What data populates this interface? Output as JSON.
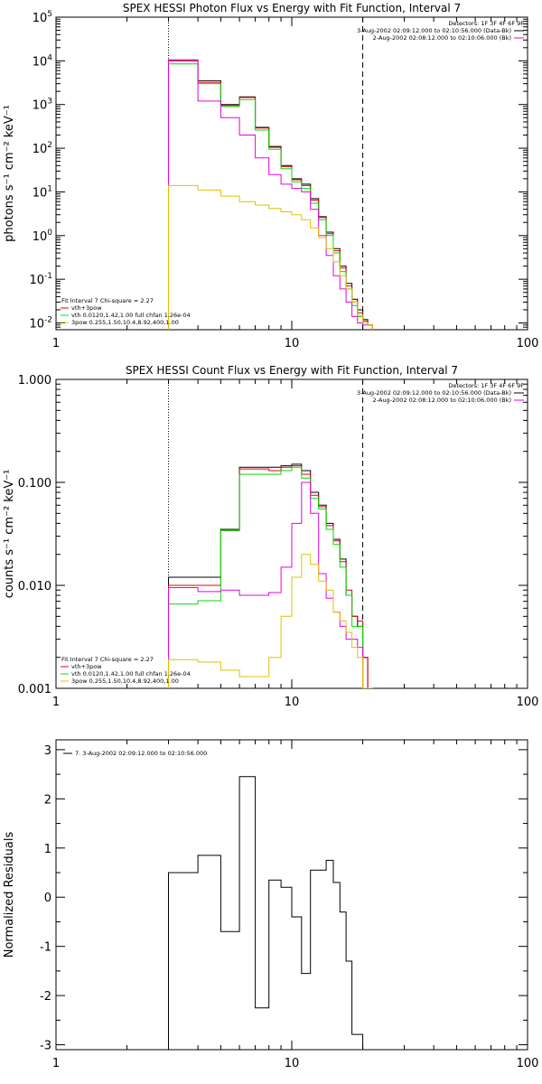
{
  "colors": {
    "black": "#000000",
    "red": "#e0001a",
    "magenta": "#e800e0",
    "green": "#00e000",
    "gold": "#e0c000"
  },
  "chart_data": [
    {
      "type": "line",
      "title": "SPEX HESSI Photon Flux vs Energy with Fit Function, Interval 7",
      "xlabel": "",
      "ylabel": "photons s⁻¹ cm⁻² keV⁻¹",
      "xscale": "log",
      "yscale": "log",
      "xlim": [
        1,
        100
      ],
      "ylim": [
        0.007,
        100000
      ],
      "xticks": [
        "1",
        "10",
        "100"
      ],
      "yticks": [
        {
          "base": "10",
          "exp": "-2",
          "v": 0.01
        },
        {
          "base": "10",
          "exp": "-1",
          "v": 0.1
        },
        {
          "base": "10",
          "exp": "0",
          "v": 1
        },
        {
          "base": "10",
          "exp": "1",
          "v": 10
        },
        {
          "base": "10",
          "exp": "2",
          "v": 100
        },
        {
          "base": "10",
          "exp": "3",
          "v": 1000
        },
        {
          "base": "10",
          "exp": "4",
          "v": 10000
        },
        {
          "base": "10",
          "exp": "5",
          "v": 100000
        }
      ],
      "vlines": [
        {
          "x": 3.0,
          "style": "dotted"
        },
        {
          "x": 20.0,
          "style": "dashed"
        }
      ],
      "legend_top_right": [
        {
          "text": "Detectors: 1F 3F 4F 6F 9F",
          "color": ""
        },
        {
          "text": "3-Aug-2002 02:09:12.000 to 02:10:56.000 (Data-Bk)",
          "color": "black"
        },
        {
          "text": "2-Aug-2002 02:08:12.000 to 02:10:06.000 (Bk)",
          "color": "magenta"
        }
      ],
      "legend_bottom_left": [
        {
          "text": "Fit Interval 7   Chi-square = 2.27",
          "color": ""
        },
        {
          "text": "vth+3pow",
          "color": "red"
        },
        {
          "text": "vth 0.0120,1.42,1.00  full chfan 1.26e-04",
          "color": "green"
        },
        {
          "text": "3pow 0.255,1.50,10.4,8.92,400,1.00",
          "color": "gold"
        }
      ],
      "x_edges": [
        3,
        4,
        5,
        6,
        7,
        8,
        9,
        10,
        11,
        12,
        13,
        14,
        15,
        16,
        17,
        18,
        19,
        20,
        21,
        22
      ],
      "series": [
        {
          "color": "black",
          "values": [
            10000,
            3500,
            1000,
            1500,
            300,
            110,
            40,
            20,
            15,
            7,
            2.7,
            1.2,
            0.5,
            0.2,
            0.08,
            0.035,
            0.02,
            0.012,
            0.009
          ]
        },
        {
          "color": "red",
          "values": [
            10500,
            3200,
            950,
            1450,
            290,
            105,
            38,
            19,
            14,
            6.5,
            2.6,
            1.1,
            0.45,
            0.18,
            0.07,
            0.03,
            0.017,
            0.011,
            0.009
          ]
        },
        {
          "color": "green",
          "values": [
            8500,
            3000,
            900,
            1300,
            260,
            95,
            34,
            17,
            12,
            5.5,
            2.3,
            1.0,
            0.4,
            0.15,
            0.06,
            0.025,
            0.014,
            0.01,
            0.009
          ]
        },
        {
          "color": "magenta",
          "values": [
            10000,
            1200,
            500,
            200,
            60,
            25,
            15,
            12,
            10,
            4,
            1.0,
            0.35,
            0.12,
            0.06,
            0.03,
            0.014,
            0.01,
            0.009,
            0.009
          ]
        },
        {
          "color": "gold",
          "values": [
            14,
            11,
            8,
            6,
            5,
            4.2,
            3.5,
            3.0,
            2.3,
            1.5,
            0.9,
            0.5,
            0.25,
            0.12,
            0.06,
            0.03,
            0.015,
            0.01,
            0.009
          ]
        }
      ]
    },
    {
      "type": "line",
      "title": "SPEX HESSI Count Flux vs Energy with Fit Function, Interval 7",
      "xlabel": "",
      "ylabel": "counts s⁻¹ cm⁻² keV⁻¹",
      "xscale": "log",
      "yscale": "log",
      "xlim": [
        1,
        100
      ],
      "ylim": [
        0.001,
        1.0
      ],
      "xticks": [
        "1",
        "10",
        "100"
      ],
      "yticks": [
        {
          "label": "0.001",
          "v": 0.001
        },
        {
          "label": "0.010",
          "v": 0.01
        },
        {
          "label": "0.100",
          "v": 0.1
        },
        {
          "label": "1.000",
          "v": 1.0
        }
      ],
      "vlines": [
        {
          "x": 3.0,
          "style": "dotted"
        },
        {
          "x": 20.0,
          "style": "dashed"
        }
      ],
      "legend_top_right": [
        {
          "text": "Detectors: 1F 3F 4F 6F 9F",
          "color": ""
        },
        {
          "text": "3-Aug-2002 02:09:12.000 to 02:10:56.000 (Data-Bk)",
          "color": "black"
        },
        {
          "text": "2-Aug-2002 02:08:12.000 to 02:10:06.000 (Bk)",
          "color": "magenta"
        }
      ],
      "legend_bottom_left": [
        {
          "text": "Fit Interval 7   Chi-square = 2.27",
          "color": ""
        },
        {
          "text": "vth+3pow",
          "color": "red"
        },
        {
          "text": "vth 0.0120,1.42,1.00  full chfan 1.26e-04",
          "color": "green"
        },
        {
          "text": "3pow 0.255,1.50,10.4,8.92,400,1.00",
          "color": "gold"
        }
      ],
      "x_edges": [
        3,
        4,
        5,
        6,
        8,
        9,
        10,
        11,
        12,
        13,
        14,
        15,
        16,
        17,
        18,
        19,
        20,
        21,
        22
      ],
      "series": [
        {
          "color": "black",
          "values": [
            0.012,
            0.012,
            0.035,
            0.14,
            0.14,
            0.145,
            0.15,
            0.13,
            0.08,
            0.06,
            0.04,
            0.028,
            0.018,
            0.008,
            0.005,
            0.004,
            0.002,
            0.001
          ]
        },
        {
          "color": "red",
          "values": [
            0.01,
            0.01,
            0.034,
            0.135,
            0.13,
            0.14,
            0.145,
            0.12,
            0.075,
            0.058,
            0.038,
            0.027,
            0.017,
            0.009,
            0.005,
            0.0045,
            0.002,
            0.001
          ]
        },
        {
          "color": "green",
          "values": [
            0.0066,
            0.0071,
            0.034,
            0.12,
            0.12,
            0.13,
            0.14,
            0.11,
            0.07,
            0.055,
            0.035,
            0.025,
            0.015,
            0.008,
            0.004,
            0.004,
            0.001,
            0.001
          ]
        },
        {
          "color": "magenta",
          "values": [
            0.0095,
            0.0087,
            0.009,
            0.008,
            0.0085,
            0.015,
            0.04,
            0.1,
            0.05,
            0.013,
            0.0075,
            0.0055,
            0.004,
            0.003,
            0.003,
            0.0025,
            0.001,
            0.001
          ]
        },
        {
          "color": "gold",
          "values": [
            0.0019,
            0.0018,
            0.0015,
            0.0013,
            0.002,
            0.005,
            0.012,
            0.02,
            0.016,
            0.011,
            0.009,
            0.0055,
            0.0045,
            0.0035,
            0.0025,
            0.002,
            0.001,
            0.001
          ]
        }
      ]
    },
    {
      "type": "line",
      "title": "",
      "xlabel": "",
      "ylabel": "Normalized Residuals",
      "xscale": "log",
      "yscale": "linear",
      "xlim": [
        1,
        100
      ],
      "ylim": [
        -3.1,
        3.2
      ],
      "xticks": [
        "1",
        "10",
        "100"
      ],
      "yticks": [
        {
          "label": "-3",
          "v": -3
        },
        {
          "label": "-2",
          "v": -2
        },
        {
          "label": "-1",
          "v": -1
        },
        {
          "label": "0",
          "v": 0
        },
        {
          "label": "1",
          "v": 1
        },
        {
          "label": "2",
          "v": 2
        },
        {
          "label": "3",
          "v": 3
        }
      ],
      "legend": {
        "text": "7.  3-Aug-2002 02:09:12.000 to 02:10:56.000",
        "color": "black"
      },
      "x_edges": [
        3,
        4,
        5,
        6,
        7,
        8,
        9,
        10,
        11,
        12,
        13,
        14,
        15,
        16,
        17,
        18,
        19,
        20
      ],
      "series": [
        {
          "color": "black",
          "values": [
            0.5,
            0.85,
            -0.7,
            2.45,
            -2.25,
            0.35,
            0.2,
            -0.4,
            -1.55,
            0.55,
            0.55,
            0.75,
            0.3,
            -0.3,
            -1.3,
            -3.1,
            -3.1
          ]
        }
      ]
    }
  ]
}
